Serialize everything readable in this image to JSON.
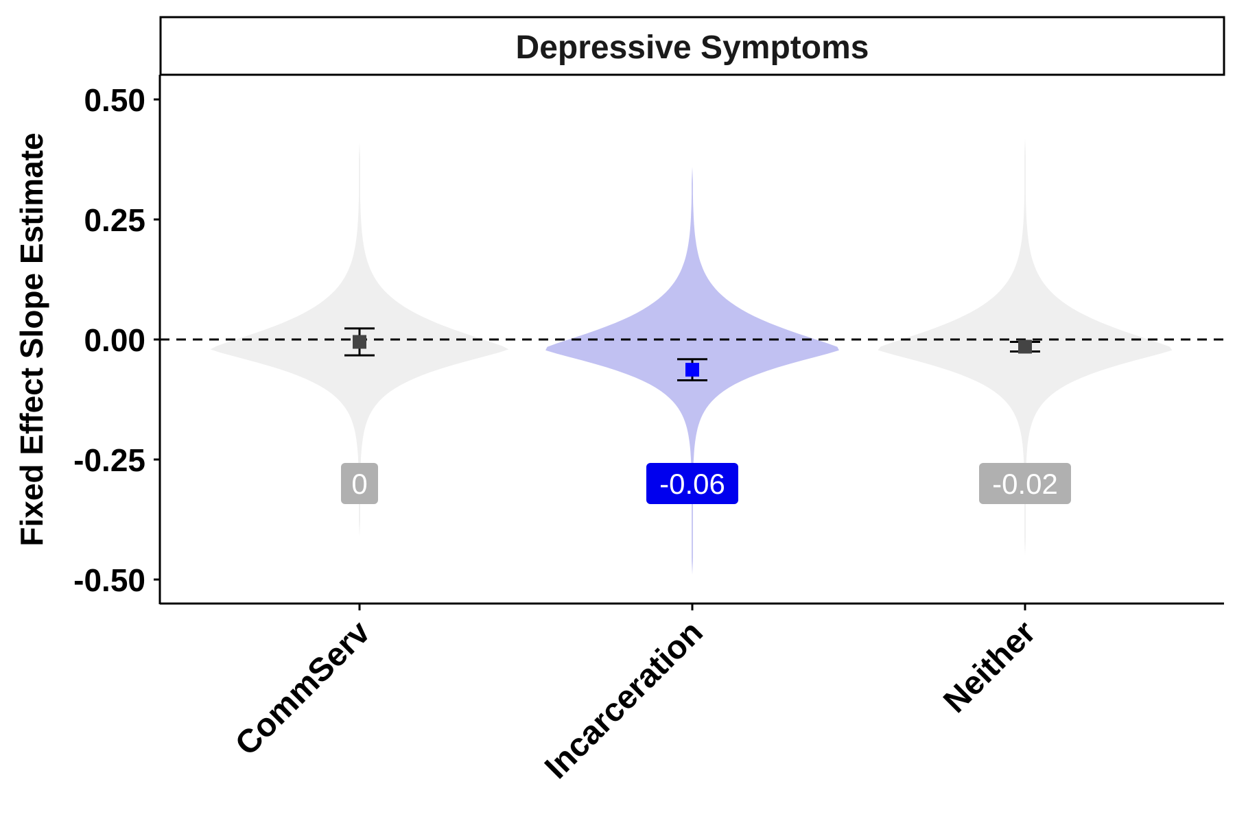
{
  "chart_data": {
    "type": "violin",
    "title": "Depressive Symptoms",
    "xlabel": "",
    "ylabel": "Fixed Effect Slope Estimate",
    "ylim": [
      -0.55,
      0.55
    ],
    "yticks": [
      0.5,
      0.25,
      0.0,
      -0.25,
      -0.5
    ],
    "ytick_labels": [
      "0.50",
      "0.25",
      "0.00",
      "-0.25",
      "-0.50"
    ],
    "reference_line": 0.0,
    "categories": [
      "CommServ",
      "Incarceration",
      "Neither"
    ],
    "groups": [
      {
        "name": "CommServ",
        "estimate": -0.005,
        "ci": [
          -0.033,
          0.023
        ],
        "label": "0",
        "violin_range": [
          -0.41,
          0.41
        ],
        "violin_color": "#efefef",
        "point_color": "#444444",
        "label_bg": "#b0b0b0"
      },
      {
        "name": "Incarceration",
        "estimate": -0.063,
        "ci": [
          -0.085,
          -0.041
        ],
        "label": "-0.06",
        "violin_range": [
          -0.49,
          0.36
        ],
        "violin_color": "#c1c1f2",
        "point_color": "#0000ff",
        "label_bg": "#0000ee"
      },
      {
        "name": "Neither",
        "estimate": -0.015,
        "ci": [
          -0.025,
          -0.005
        ],
        "label": "-0.02",
        "violin_range": [
          -0.45,
          0.42
        ],
        "violin_color": "#efefef",
        "point_color": "#444444",
        "label_bg": "#b0b0b0"
      }
    ],
    "label_y": -0.3
  }
}
